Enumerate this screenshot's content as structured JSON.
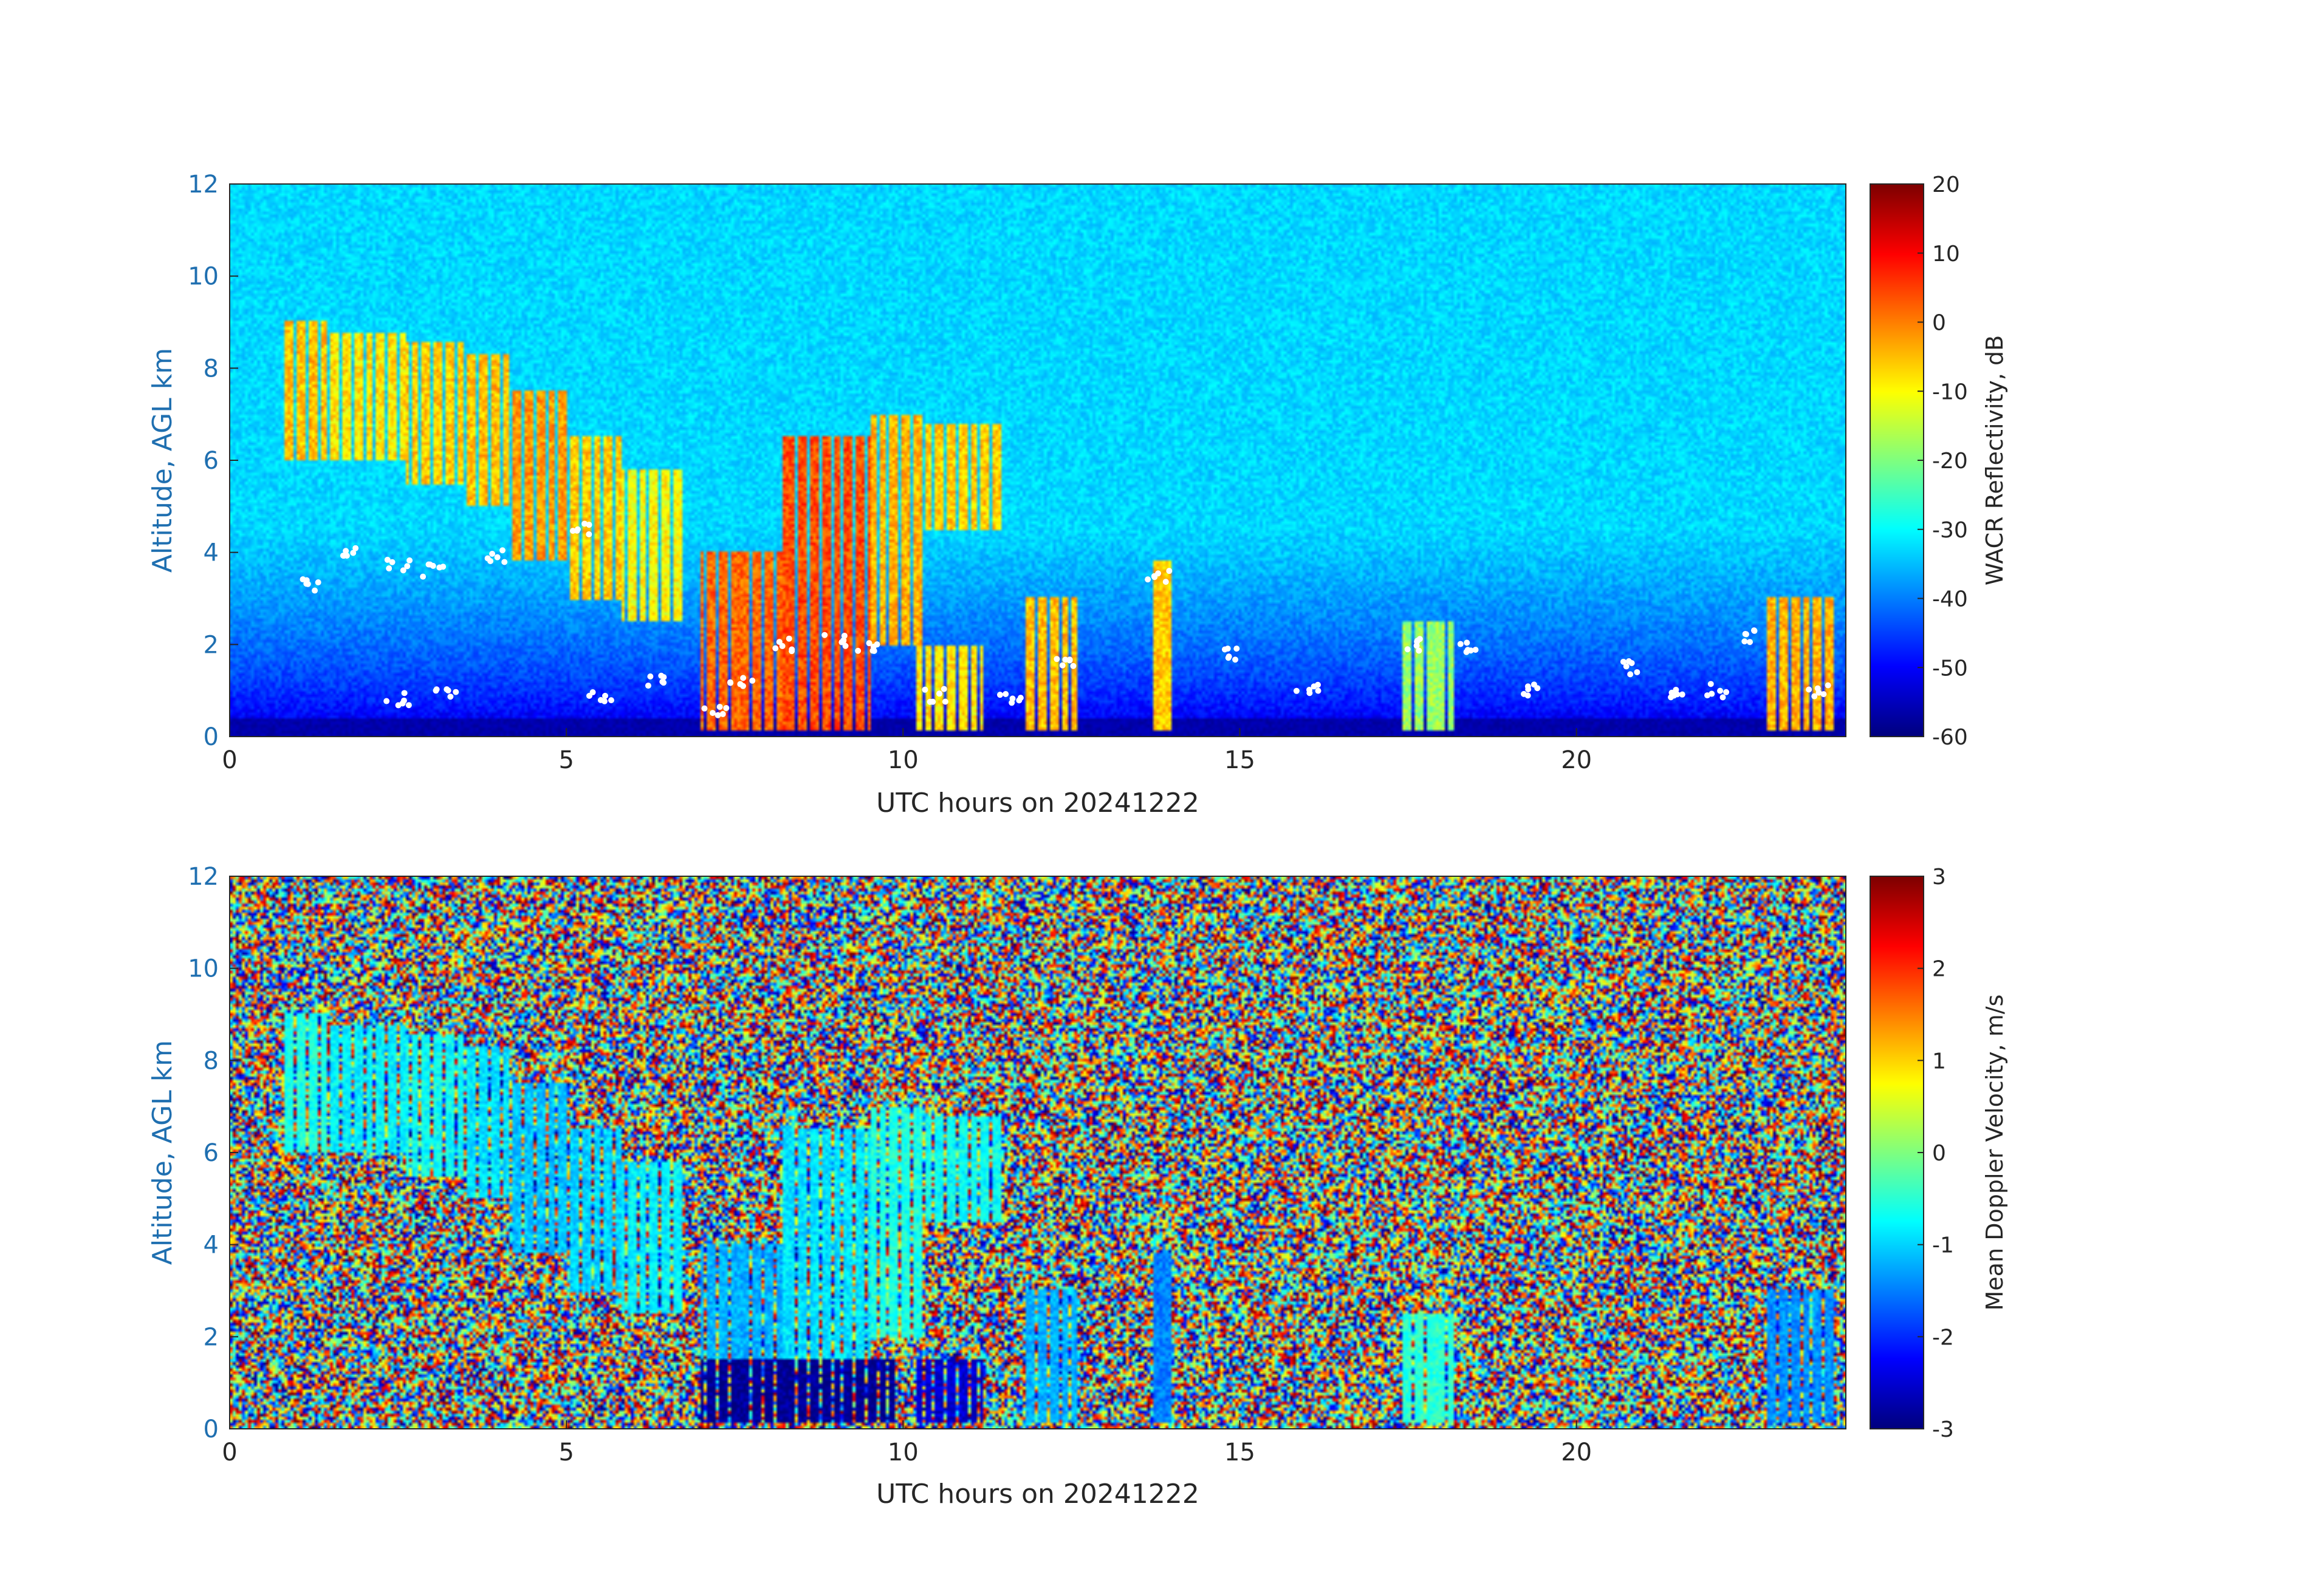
{
  "chart_data": [
    {
      "type": "heatmap",
      "xlabel": "UTC hours on 20241222",
      "ylabel": "Altitude, AGL km",
      "xlim": [
        0,
        24
      ],
      "ylim": [
        0,
        12
      ],
      "x_ticks": [
        "0",
        "5",
        "10",
        "15",
        "20"
      ],
      "y_ticks": [
        "0",
        "2",
        "4",
        "6",
        "8",
        "10",
        "12"
      ],
      "colorbar": {
        "label": "WACR Reflectivity, dB",
        "range": [
          -60,
          20
        ],
        "ticks": [
          "20",
          "10",
          "0",
          "-10",
          "-20",
          "-30",
          "-40",
          "-50",
          "-60"
        ],
        "colormap": "jet"
      },
      "background": {
        "surface_value": -58,
        "top_value": -33
      },
      "cloud_columns": [
        {
          "x": [
            0.8,
            1.5
          ],
          "y": [
            6.0,
            9.0
          ],
          "value": -5
        },
        {
          "x": [
            1.5,
            2.6
          ],
          "y": [
            6.0,
            8.8
          ],
          "value": -8
        },
        {
          "x": [
            2.6,
            3.5
          ],
          "y": [
            5.5,
            8.6
          ],
          "value": -6
        },
        {
          "x": [
            3.5,
            4.2
          ],
          "y": [
            5.0,
            8.3
          ],
          "value": -5
        },
        {
          "x": [
            4.2,
            5.0
          ],
          "y": [
            3.8,
            7.5
          ],
          "value": -2
        },
        {
          "x": [
            5.0,
            5.8
          ],
          "y": [
            3.0,
            6.5
          ],
          "value": -6
        },
        {
          "x": [
            5.8,
            6.7
          ],
          "y": [
            2.5,
            5.8
          ],
          "value": -10
        },
        {
          "x": [
            7.0,
            8.2
          ],
          "y": [
            0.1,
            4.0
          ],
          "value": 2
        },
        {
          "x": [
            8.2,
            9.5
          ],
          "y": [
            0.1,
            6.5
          ],
          "value": 4
        },
        {
          "x": [
            9.5,
            10.3
          ],
          "y": [
            2.0,
            7.0
          ],
          "value": -4
        },
        {
          "x": [
            10.3,
            11.5
          ],
          "y": [
            4.5,
            6.8
          ],
          "value": -6
        },
        {
          "x": [
            10.2,
            11.2
          ],
          "y": [
            0.1,
            2.0
          ],
          "value": -8
        },
        {
          "x": [
            11.8,
            12.6
          ],
          "y": [
            0.1,
            3.0
          ],
          "value": -5
        },
        {
          "x": [
            13.7,
            14.0
          ],
          "y": [
            0.1,
            3.8
          ],
          "value": -6
        },
        {
          "x": [
            17.4,
            18.2
          ],
          "y": [
            0.1,
            2.5
          ],
          "value": -18
        },
        {
          "x": [
            22.8,
            23.8
          ],
          "y": [
            0.1,
            3.0
          ],
          "value": -4
        }
      ],
      "cloud_base_points": [
        {
          "x": 1.2,
          "y": 3.3
        },
        {
          "x": 1.8,
          "y": 4.0
        },
        {
          "x": 2.5,
          "y": 3.7
        },
        {
          "x": 3.0,
          "y": 3.6
        },
        {
          "x": 4.0,
          "y": 3.9
        },
        {
          "x": 5.2,
          "y": 4.5
        },
        {
          "x": 2.5,
          "y": 0.8
        },
        {
          "x": 3.2,
          "y": 0.9
        },
        {
          "x": 5.5,
          "y": 0.9
        },
        {
          "x": 6.3,
          "y": 1.2
        },
        {
          "x": 7.2,
          "y": 0.6
        },
        {
          "x": 7.6,
          "y": 1.2
        },
        {
          "x": 8.2,
          "y": 2.0
        },
        {
          "x": 9.0,
          "y": 2.1
        },
        {
          "x": 9.5,
          "y": 2.0
        },
        {
          "x": 10.5,
          "y": 0.9
        },
        {
          "x": 11.6,
          "y": 0.8
        },
        {
          "x": 12.4,
          "y": 1.6
        },
        {
          "x": 13.8,
          "y": 3.5
        },
        {
          "x": 14.9,
          "y": 1.8
        },
        {
          "x": 16.0,
          "y": 1.0
        },
        {
          "x": 17.6,
          "y": 2.0
        },
        {
          "x": 18.4,
          "y": 1.9
        },
        {
          "x": 19.3,
          "y": 1.0
        },
        {
          "x": 20.8,
          "y": 1.5
        },
        {
          "x": 21.4,
          "y": 0.9
        },
        {
          "x": 22.1,
          "y": 1.0
        },
        {
          "x": 22.5,
          "y": 2.2
        },
        {
          "x": 23.6,
          "y": 1.0
        }
      ]
    },
    {
      "type": "heatmap",
      "xlabel": "UTC hours on 20241222",
      "ylabel": "Altitude, AGL km",
      "xlim": [
        0,
        24
      ],
      "ylim": [
        0,
        12
      ],
      "x_ticks": [
        "0",
        "5",
        "10",
        "15",
        "20"
      ],
      "y_ticks": [
        "0",
        "2",
        "4",
        "6",
        "8",
        "10",
        "12"
      ],
      "colorbar": {
        "label": "Mean Doppler Velocity, m/s",
        "range": [
          -3,
          3
        ],
        "ticks": [
          "3",
          "2",
          "1",
          "0",
          "-1",
          "-2",
          "-3"
        ],
        "colormap": "jet"
      },
      "background": "random noise over full range",
      "cloud_columns": [
        {
          "x": [
            0.8,
            1.5
          ],
          "y": [
            6.0,
            9.0
          ],
          "value": -0.6
        },
        {
          "x": [
            1.5,
            2.6
          ],
          "y": [
            6.0,
            8.8
          ],
          "value": -0.8
        },
        {
          "x": [
            2.6,
            3.5
          ],
          "y": [
            5.5,
            8.6
          ],
          "value": -0.7
        },
        {
          "x": [
            3.5,
            4.2
          ],
          "y": [
            5.0,
            8.3
          ],
          "value": -0.9
        },
        {
          "x": [
            4.2,
            5.0
          ],
          "y": [
            3.8,
            7.5
          ],
          "value": -1.1
        },
        {
          "x": [
            5.0,
            5.8
          ],
          "y": [
            3.0,
            6.5
          ],
          "value": -1.0
        },
        {
          "x": [
            5.8,
            6.7
          ],
          "y": [
            2.5,
            5.8
          ],
          "value": -0.8
        },
        {
          "x": [
            7.0,
            8.2
          ],
          "y": [
            1.0,
            4.0
          ],
          "value": -1.2
        },
        {
          "x": [
            8.2,
            9.5
          ],
          "y": [
            1.5,
            6.5
          ],
          "value": -0.9
        },
        {
          "x": [
            9.5,
            10.3
          ],
          "y": [
            2.0,
            7.0
          ],
          "value": -0.6
        },
        {
          "x": [
            10.3,
            11.5
          ],
          "y": [
            4.5,
            6.8
          ],
          "value": -0.7
        },
        {
          "x": [
            7.0,
            9.9
          ],
          "y": [
            0.1,
            1.5
          ],
          "value": -2.9
        },
        {
          "x": [
            10.2,
            11.2
          ],
          "y": [
            0.1,
            1.5
          ],
          "value": -2.5
        },
        {
          "x": [
            11.8,
            12.6
          ],
          "y": [
            0.1,
            3.0
          ],
          "value": -1.2
        },
        {
          "x": [
            13.7,
            14.0
          ],
          "y": [
            0.1,
            3.8
          ],
          "value": -1.5
        },
        {
          "x": [
            17.4,
            18.2
          ],
          "y": [
            0.1,
            2.5
          ],
          "value": -0.5
        },
        {
          "x": [
            22.8,
            23.8
          ],
          "y": [
            0.1,
            3.0
          ],
          "value": -1.4
        }
      ]
    }
  ]
}
